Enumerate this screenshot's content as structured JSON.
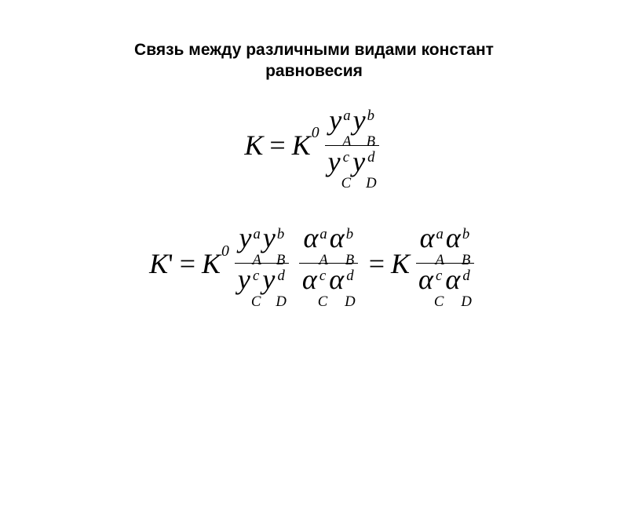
{
  "title_line1": "Связь между различными видами констант",
  "title_line2": "равновесия",
  "K": "K",
  "eq": "=",
  "zero": "0",
  "prime": "'",
  "y": "y",
  "alpha": "α",
  "A": "A",
  "B": "B",
  "C": "C",
  "D": "D",
  "a": "a",
  "b": "b",
  "c": "c",
  "d": "d",
  "colors": {
    "text": "#000000",
    "bg": "#ffffff"
  },
  "fonts": {
    "title": "Arial, sans-serif",
    "math": "Times New Roman, serif"
  },
  "title_fontsize": 21,
  "math_fontsize": 36
}
